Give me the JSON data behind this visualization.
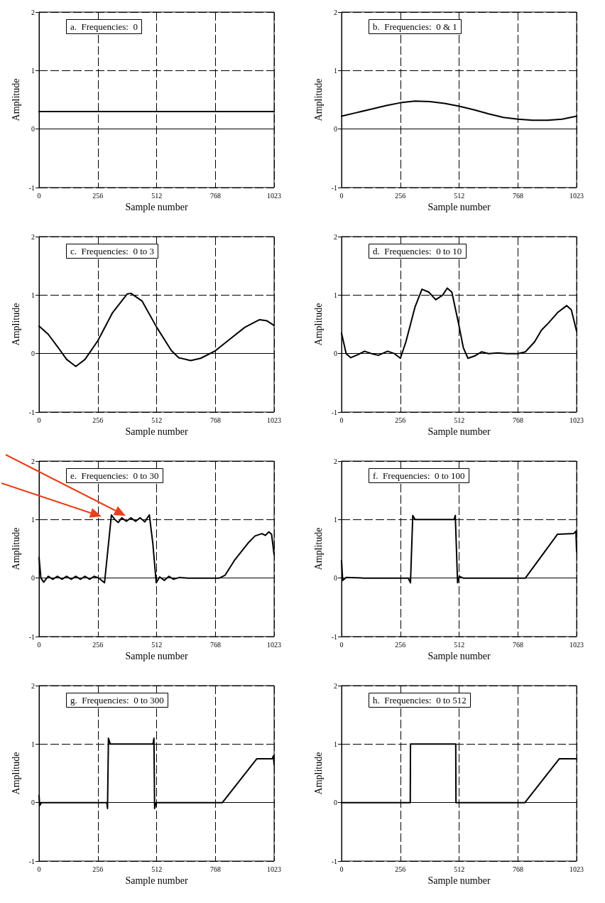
{
  "chart_data": [
    {
      "type": "line",
      "title": "a.  Frequencies:  0",
      "xlabel": "Sample number",
      "ylabel": "Amplitude",
      "color": "#000000",
      "xlim": [
        0,
        1023
      ],
      "xticks": [
        0,
        256,
        512,
        768,
        1023
      ],
      "ylim": [
        -1,
        2
      ],
      "yticks": [
        -1,
        0,
        1,
        2
      ],
      "grid": true,
      "x": [
        0,
        1023
      ],
      "values": [
        0.3,
        0.3
      ]
    },
    {
      "type": "line",
      "title": "b.  Frequencies:  0 & 1",
      "xlabel": "Sample number",
      "ylabel": "Amplitude",
      "color": "#000000",
      "xlim": [
        0,
        1023
      ],
      "xticks": [
        0,
        256,
        512,
        768,
        1023
      ],
      "ylim": [
        -1,
        2
      ],
      "yticks": [
        -1,
        0,
        1,
        2
      ],
      "grid": true,
      "x": [
        0,
        64,
        128,
        192,
        256,
        320,
        384,
        448,
        512,
        576,
        640,
        704,
        768,
        832,
        896,
        960,
        1023
      ],
      "values": [
        0.22,
        0.28,
        0.34,
        0.4,
        0.45,
        0.48,
        0.47,
        0.44,
        0.39,
        0.33,
        0.26,
        0.2,
        0.17,
        0.15,
        0.15,
        0.17,
        0.22
      ]
    },
    {
      "type": "line",
      "title": "c.  Frequencies:  0 to 3",
      "xlabel": "Sample number",
      "ylabel": "Amplitude",
      "color": "#000000",
      "xlim": [
        0,
        1023
      ],
      "xticks": [
        0,
        256,
        512,
        768,
        1023
      ],
      "ylim": [
        -1,
        2
      ],
      "yticks": [
        -1,
        0,
        1,
        2
      ],
      "grid": true,
      "x": [
        0,
        40,
        80,
        120,
        160,
        200,
        256,
        320,
        384,
        400,
        448,
        512,
        576,
        608,
        660,
        704,
        768,
        832,
        896,
        960,
        992,
        1023
      ],
      "values": [
        0.47,
        0.33,
        0.12,
        -0.1,
        -0.22,
        -0.1,
        0.22,
        0.7,
        1.02,
        1.03,
        0.9,
        0.45,
        0.05,
        -0.07,
        -0.12,
        -0.08,
        0.05,
        0.25,
        0.45,
        0.58,
        0.56,
        0.48
      ]
    },
    {
      "type": "line",
      "title": "d.  Frequencies:  0 to 10",
      "xlabel": "Sample number",
      "ylabel": "Amplitude",
      "color": "#000000",
      "xlim": [
        0,
        1023
      ],
      "xticks": [
        0,
        256,
        512,
        768,
        1023
      ],
      "ylim": [
        -1,
        2
      ],
      "yticks": [
        -1,
        0,
        1,
        2
      ],
      "grid": true,
      "x": [
        0,
        20,
        40,
        70,
        100,
        130,
        160,
        200,
        230,
        256,
        280,
        320,
        350,
        380,
        410,
        440,
        460,
        480,
        510,
        530,
        550,
        580,
        610,
        640,
        680,
        720,
        768,
        800,
        840,
        870,
        900,
        940,
        980,
        1000,
        1023
      ],
      "values": [
        0.35,
        0.0,
        -0.07,
        -0.02,
        0.04,
        0.0,
        -0.03,
        0.04,
        0.0,
        -0.08,
        0.2,
        0.8,
        1.1,
        1.05,
        0.92,
        1.0,
        1.12,
        1.05,
        0.5,
        0.1,
        -0.08,
        -0.04,
        0.03,
        0.0,
        0.01,
        0.0,
        0.0,
        0.03,
        0.2,
        0.4,
        0.52,
        0.7,
        0.82,
        0.75,
        0.38
      ]
    },
    {
      "type": "line",
      "title": "e.  Frequencies:  0 to 30",
      "xlabel": "Sample number",
      "ylabel": "Amplitude",
      "color": "#000000",
      "xlim": [
        0,
        1023
      ],
      "xticks": [
        0,
        256,
        512,
        768,
        1023
      ],
      "ylim": [
        -1,
        2
      ],
      "yticks": [
        -1,
        0,
        1,
        2
      ],
      "grid": true,
      "x": [
        0,
        8,
        20,
        40,
        60,
        80,
        100,
        120,
        140,
        160,
        180,
        200,
        220,
        240,
        260,
        285,
        300,
        315,
        330,
        345,
        360,
        380,
        400,
        420,
        440,
        460,
        480,
        495,
        510,
        525,
        545,
        565,
        585,
        610,
        650,
        700,
        785,
        810,
        850,
        880,
        910,
        940,
        970,
        985,
        1000,
        1012,
        1023
      ],
      "values": [
        0.35,
        0.0,
        -0.07,
        0.03,
        -0.02,
        0.03,
        -0.02,
        0.03,
        -0.02,
        0.03,
        -0.02,
        0.03,
        -0.02,
        0.03,
        0.0,
        -0.08,
        0.5,
        1.08,
        1.0,
        0.95,
        1.03,
        0.97,
        1.03,
        0.97,
        1.03,
        0.96,
        1.08,
        0.6,
        -0.08,
        0.02,
        -0.04,
        0.03,
        -0.02,
        0.01,
        0.0,
        0.0,
        0.0,
        0.05,
        0.3,
        0.45,
        0.6,
        0.72,
        0.76,
        0.73,
        0.79,
        0.75,
        0.4
      ]
    },
    {
      "type": "line",
      "title": "f.  Frequencies:  0 to 100",
      "xlabel": "Sample number",
      "ylabel": "Amplitude",
      "color": "#000000",
      "xlim": [
        0,
        1023
      ],
      "xticks": [
        0,
        256,
        512,
        768,
        1023
      ],
      "ylim": [
        -1,
        2
      ],
      "yticks": [
        -1,
        0,
        1,
        2
      ],
      "grid": true,
      "x": [
        0,
        5,
        20,
        100,
        200,
        290,
        300,
        305,
        310,
        320,
        400,
        490,
        495,
        500,
        505,
        512,
        530,
        800,
        940,
        1010,
        1020,
        1023
      ],
      "values": [
        0.3,
        -0.04,
        0.01,
        0.0,
        0.0,
        0.0,
        -0.08,
        0.5,
        1.07,
        1.0,
        1.0,
        1.0,
        1.07,
        0.5,
        -0.08,
        0.03,
        0.0,
        0.0,
        0.75,
        0.76,
        0.8,
        0.45
      ]
    },
    {
      "type": "line",
      "title": "g.  Frequencies:  0 to 300",
      "xlabel": "Sample number",
      "ylabel": "Amplitude",
      "color": "#000000",
      "xlim": [
        0,
        1023
      ],
      "xticks": [
        0,
        256,
        512,
        768,
        1023
      ],
      "ylim": [
        -1,
        2
      ],
      "yticks": [
        -1,
        0,
        1,
        2
      ],
      "grid": true,
      "x": [
        0,
        3,
        10,
        295,
        298,
        302,
        310,
        496,
        500,
        503,
        510,
        798,
        948,
        1015,
        1020,
        1023
      ],
      "values": [
        0.12,
        -0.05,
        0.0,
        0.0,
        -0.1,
        1.1,
        1.0,
        1.0,
        1.1,
        -0.1,
        0.0,
        0.0,
        0.75,
        0.75,
        0.8,
        0.65
      ]
    },
    {
      "type": "line",
      "title": "h.  Frequencies:  0 to 512",
      "xlabel": "Sample number",
      "ylabel": "Amplitude",
      "color": "#000000",
      "xlim": [
        0,
        1023
      ],
      "xticks": [
        0,
        256,
        512,
        768,
        1023
      ],
      "ylim": [
        -1,
        2
      ],
      "yticks": [
        -1,
        0,
        1,
        2
      ],
      "grid": true,
      "x": [
        0,
        299,
        300,
        497,
        498,
        798,
        948,
        1023
      ],
      "values": [
        0.0,
        0.0,
        1.0,
        1.0,
        0.0,
        0.0,
        0.75,
        0.75
      ]
    }
  ]
}
